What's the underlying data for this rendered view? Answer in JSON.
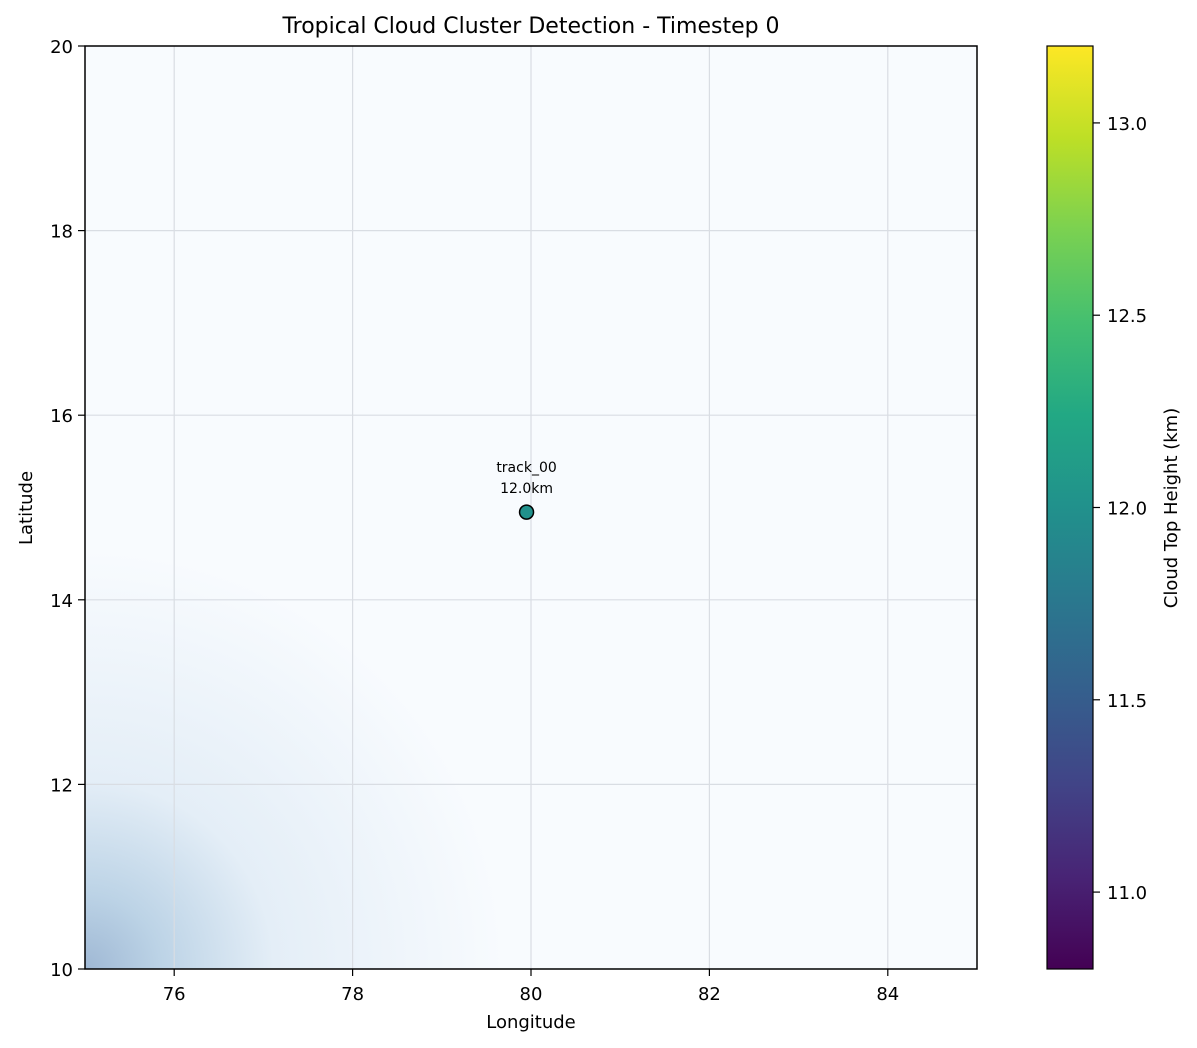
{
  "chart_data": {
    "type": "heatmap",
    "title": "Tropical Cloud Cluster Detection - Timestep 0",
    "xlabel": "Longitude",
    "ylabel": "Latitude",
    "xlim": [
      75,
      85
    ],
    "ylim": [
      10,
      20
    ],
    "x_ticks": [
      76,
      78,
      80,
      82,
      84
    ],
    "y_ticks": [
      10,
      12,
      14,
      16,
      18,
      20
    ],
    "grid": true,
    "background_field": {
      "description_colormap": "Blues",
      "peak_location": [
        75,
        10
      ],
      "peak_color": "#9fb8d4",
      "base_color": "#f8fbfe"
    },
    "points": [
      {
        "name": "track_00",
        "label": "track_00",
        "height_label": "12.0km",
        "x": 79.95,
        "y": 14.95,
        "cloud_top_height_km": 12.0
      }
    ],
    "colorbar": {
      "label": "Cloud Top Height (km)",
      "colormap": "viridis",
      "vmin": 10.8,
      "vmax": 13.2,
      "ticks": [
        11.0,
        11.5,
        12.0,
        12.5,
        13.0
      ],
      "tick_labels": [
        "11.0",
        "11.5",
        "12.0",
        "12.5",
        "13.0"
      ]
    }
  },
  "colors": {
    "point_fill": "#21918c",
    "grid": "#d9dde3",
    "frame": "#000000"
  }
}
